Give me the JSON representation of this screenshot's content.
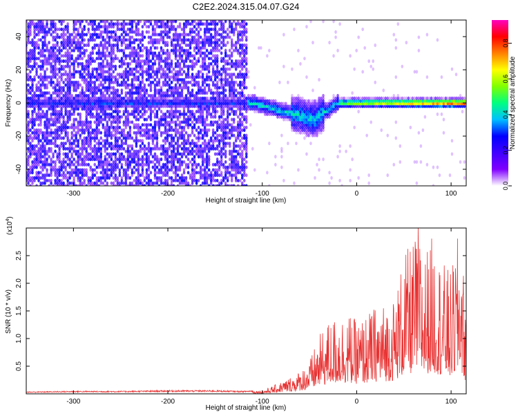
{
  "title": "C2E2.2024.315.04.07.G24",
  "chart_data": [
    {
      "type": "heatmap",
      "xlabel": "Height of straight line (km)",
      "ylabel": "Frequency (Hz)",
      "xlim": [
        -350,
        116
      ],
      "ylim": [
        -50,
        50
      ],
      "x_ticks": [
        -300,
        -200,
        -100,
        0,
        100
      ],
      "y_ticks": [
        -40,
        -20,
        0,
        20,
        40
      ],
      "colorbar": {
        "label": "Normalized spectral amplitude",
        "range": [
          0,
          0.93
        ],
        "ticks": [
          0.0,
          0.2,
          0.4,
          0.6,
          0.8
        ],
        "tick_labels": [
          "0.0",
          "0.2",
          "0.4",
          "0.6",
          "0.8"
        ],
        "colors": [
          "#ffffff",
          "#8000ff",
          "#4000ff",
          "#0000ff",
          "#00c0ff",
          "#00ff80",
          "#80ff00",
          "#ffff00",
          "#ff8000",
          "#ff0000",
          "#ff00c0"
        ]
      },
      "features": {
        "noise_region_x": [
          -350,
          -115
        ],
        "signal_band_center_hz": 0,
        "dip_min_hz_near_x": -45,
        "dip_min_hz": -18
      },
      "grid": false
    },
    {
      "type": "line",
      "xlabel": "Height of straight line (km)",
      "ylabel": "SNR (10 * v/v)",
      "multiplier_label": "(x10",
      "multiplier_exp": "4",
      "multiplier_close": ")",
      "xlim": [
        -350,
        116
      ],
      "ylim": [
        0,
        3.0
      ],
      "x_ticks": [
        -300,
        -200,
        -100,
        0,
        100
      ],
      "y_ticks": [
        0.5,
        1.0,
        1.5,
        2.0,
        2.5
      ],
      "y_tick_labels": [
        "0.5",
        "1.0",
        "1.5",
        "2.0",
        "2.5"
      ],
      "series": [
        {
          "color": "#e83030",
          "x": [
            -350,
            -300,
            -250,
            -200,
            -150,
            -120,
            -100,
            -90,
            -80,
            -70,
            -60,
            -50,
            -40,
            -30,
            -20,
            -10,
            0,
            10,
            20,
            30,
            40,
            50,
            60,
            65,
            70,
            80,
            90,
            100,
            110,
            116
          ],
          "y": [
            0.03,
            0.04,
            0.04,
            0.05,
            0.05,
            0.04,
            0.06,
            0.12,
            0.2,
            0.28,
            0.38,
            0.55,
            0.95,
            1.2,
            1.3,
            1.35,
            1.2,
            1.3,
            1.45,
            1.5,
            1.6,
            2.3,
            2.5,
            2.85,
            2.3,
            2.6,
            2.2,
            2.0,
            2.85,
            1.3
          ]
        }
      ],
      "grid": false
    }
  ]
}
